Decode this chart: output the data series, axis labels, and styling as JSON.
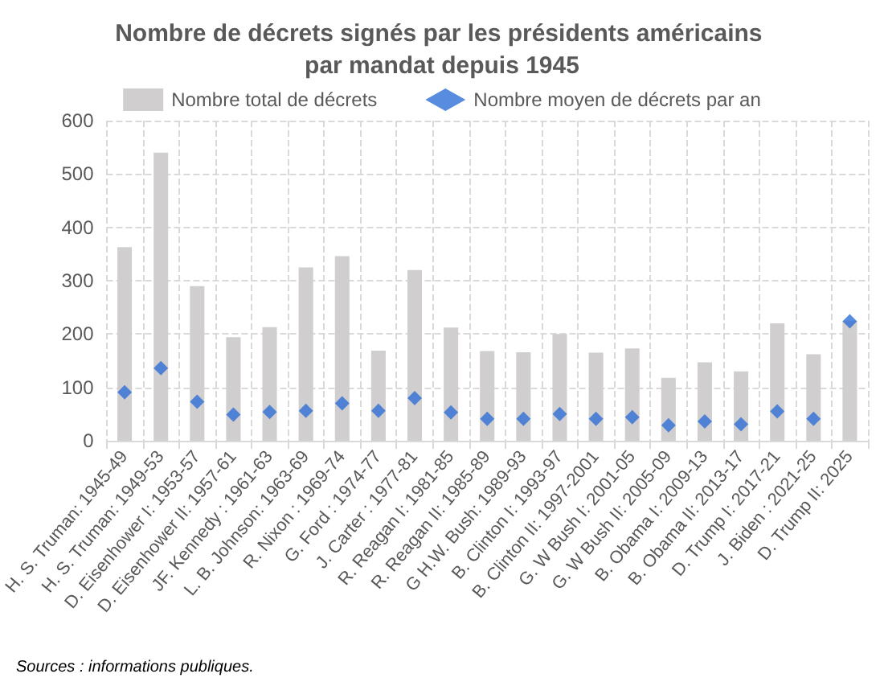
{
  "chart_data": {
    "type": "bar",
    "title": "Nombre de décrets signés par les présidents américains par mandat depuis 1945",
    "categories": [
      "H. S. Truman: 1945-49",
      "H. S. Truman: 1949-53",
      "D. Eisenhower I: 1953-57",
      "D. Eisenhower II: 1957-61",
      "JF. Kennedy : 1961-63",
      "L. B. Johnson: 1963-69",
      "R. Nixon : 1969-74",
      "G. Ford : 1974-77",
      "J. Carter : 1977-81",
      "R. Reagan I: 1981-85",
      "R. Reagan II: 1985-89",
      "G H.W. Bush: 1989-93",
      "B. Clinton I: 1993-97",
      "B. Clinton II: 1997-2001",
      "G. W Bush I: 2001-05",
      "G. W Bush II: 2005-09",
      "B. Obama I: 2009-13",
      "B. Obama II: 2013-17",
      "D. Trump I: 2017-21",
      "J. Biden : 2021-25",
      "D. Trump II: 2025"
    ],
    "series": [
      {
        "name": "Nombre total de décrets",
        "color": "#d0cece",
        "values": [
          363,
          540,
          290,
          194,
          213,
          325,
          346,
          169,
          320,
          212,
          168,
          166,
          200,
          165,
          173,
          118,
          147,
          130,
          220,
          162,
          225
        ]
      },
      {
        "name": "Nombre moyen de décrets par an",
        "type": "scatter",
        "color": "#2e6fd6",
        "marker": "diamond",
        "values": [
          91,
          136,
          73,
          49,
          54,
          56,
          70,
          56,
          80,
          53,
          41,
          41,
          50,
          41,
          44,
          29,
          36,
          31,
          55,
          41,
          224
        ]
      }
    ],
    "ylim": [
      0,
      600
    ],
    "yticks": [
      0,
      100,
      200,
      300,
      400,
      500,
      600
    ],
    "grid": true,
    "legend": "top",
    "annotations": [
      "Sources : informations publiques."
    ]
  }
}
